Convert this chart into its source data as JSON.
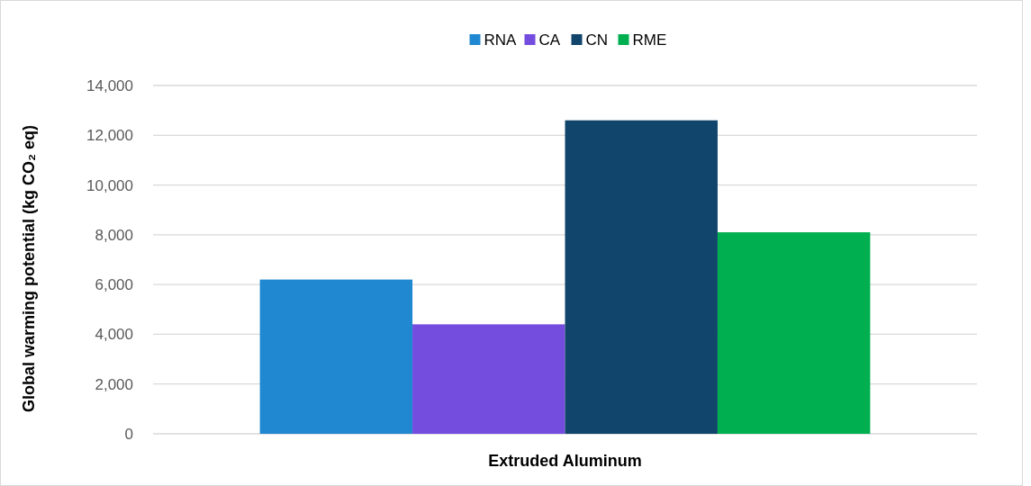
{
  "chart_data": {
    "type": "bar",
    "ylabel": "Global warming potential (kg CO₂ eq)",
    "categories": [
      "Extruded Aluminum"
    ],
    "series": [
      {
        "name": "RNA",
        "color": "#2088d0",
        "values": [
          6200
        ]
      },
      {
        "name": "CA",
        "color": "#744ddf",
        "values": [
          4400
        ]
      },
      {
        "name": "CN",
        "color": "#11456b",
        "values": [
          12600
        ]
      },
      {
        "name": "RME",
        "color": "#00af50",
        "values": [
          8100
        ]
      }
    ],
    "ylim": [
      0,
      14000
    ],
    "yticks": [
      {
        "value": 0,
        "label": "0"
      },
      {
        "value": 2000,
        "label": "2,000"
      },
      {
        "value": 4000,
        "label": "4,000"
      },
      {
        "value": 6000,
        "label": "6,000"
      },
      {
        "value": 8000,
        "label": "8,000"
      },
      {
        "value": 10000,
        "label": "10,000"
      },
      {
        "value": 12000,
        "label": "12,000"
      },
      {
        "value": 14000,
        "label": "14,000"
      }
    ],
    "grid": "y",
    "legend": "top"
  }
}
